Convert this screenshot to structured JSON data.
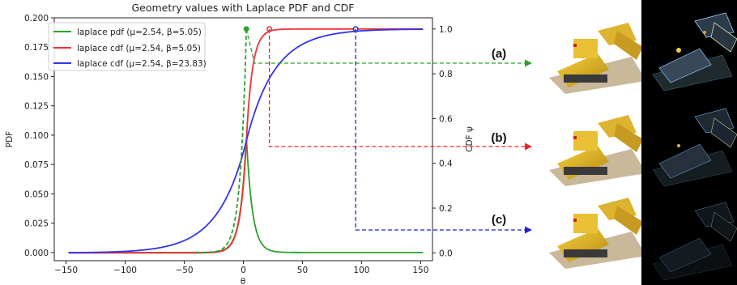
{
  "chart_data": {
    "type": "line",
    "title": "Geometry values with Laplace PDF and CDF",
    "xlabel": "θ",
    "ylabel_left": "PDF",
    "ylabel_right": "CDF ψ",
    "xlim": [
      -160,
      160
    ],
    "ylim_left": [
      -0.007,
      0.2
    ],
    "ylim_right": [
      -0.035,
      1.05
    ],
    "x_ticks": [
      "−150",
      "−100",
      "−50",
      "0",
      "50",
      "100",
      "150"
    ],
    "x_tick_values": [
      -150,
      -100,
      -50,
      0,
      50,
      100,
      150
    ],
    "y_ticks_left": [
      "0.000",
      "0.025",
      "0.050",
      "0.075",
      "0.100",
      "0.125",
      "0.150",
      "0.175",
      "0.200"
    ],
    "y_tick_values_left": [
      0,
      0.025,
      0.05,
      0.075,
      0.1,
      0.125,
      0.15,
      0.175,
      0.2
    ],
    "y_ticks_right": [
      "0.0",
      "0.2",
      "0.4",
      "0.6",
      "0.8",
      "1.0"
    ],
    "y_tick_values_right": [
      0,
      0.2,
      0.4,
      0.6,
      0.8,
      1.0
    ],
    "series": [
      {
        "name": "laplace pdf (μ=2.54, β=5.05)",
        "axis": "left",
        "color": "#2ca02c",
        "mu": 2.54,
        "beta": 5.05,
        "kind": "pdf"
      },
      {
        "name": "laplace cdf (μ=2.54, β=5.05)",
        "axis": "right",
        "color": "#ee3333",
        "mu": 2.54,
        "beta": 5.05,
        "kind": "cdf"
      },
      {
        "name": "laplace cdf (μ=2.54, β=23.83)",
        "axis": "right",
        "color": "#3333ee",
        "mu": 2.54,
        "beta": 23.83,
        "kind": "cdf"
      }
    ],
    "x_range": [
      -148,
      152
    ],
    "annotations": [
      {
        "label": "(a)",
        "color": "#2ca02c",
        "marker_x": 2.54,
        "marker_y_right": 1.0
      },
      {
        "label": "(b)",
        "color": "#ee2222",
        "marker_x": 22,
        "marker_y_right": 1.0
      },
      {
        "label": "(c)",
        "color": "#2222cc",
        "marker_x": 95,
        "marker_y_right": 1.0
      }
    ],
    "grid": false,
    "legend_position": "top-left"
  },
  "colors": {
    "pdf": "#2ca02c",
    "cdf_sharp": "#ee3333",
    "cdf_wide": "#3333ee"
  }
}
